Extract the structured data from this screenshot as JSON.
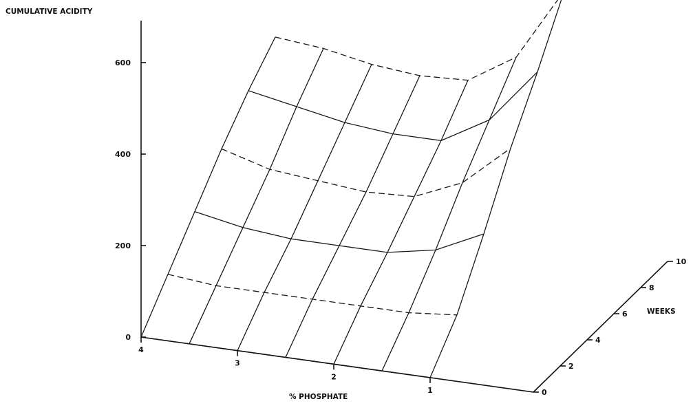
{
  "chart_data": {
    "type": "surface",
    "zlabel": "CUMULATIVE ACIDITY",
    "xlabel": "% PHOSPHATE",
    "ylabel": "WEEKS",
    "x_ticks": [
      "4",
      "3",
      "2",
      "1"
    ],
    "y_ticks": [
      "0",
      "2",
      "4",
      "6",
      "8",
      "10"
    ],
    "z_ticks": [
      "0",
      "200",
      "400",
      "600"
    ],
    "xlim": [
      1,
      4
    ],
    "ylim": [
      0,
      10
    ],
    "zlim": [
      0,
      600
    ],
    "phosphate_levels": [
      4.0,
      3.5,
      3.0,
      2.5,
      2.0,
      1.5,
      1.0
    ],
    "weeks": [
      0,
      2,
      4,
      6,
      8,
      10
    ],
    "series": [
      {
        "week": 0,
        "acidity": [
          0,
          0,
          0,
          0,
          0,
          0,
          0
        ]
      },
      {
        "week": 2,
        "acidity": [
          80,
          70,
          70,
          70,
          70,
          70,
          80
        ]
      },
      {
        "week": 4,
        "acidity": [
          160,
          140,
          130,
          130,
          130,
          150,
          200
        ]
      },
      {
        "week": 6,
        "acidity": [
          240,
          210,
          200,
          190,
          195,
          240,
          330
        ]
      },
      {
        "week": 8,
        "acidity": [
          310,
          290,
          270,
          260,
          260,
          320,
          440
        ]
      },
      {
        "week": 10,
        "acidity": [
          370,
          360,
          340,
          330,
          335,
          400,
          560
        ]
      }
    ]
  }
}
